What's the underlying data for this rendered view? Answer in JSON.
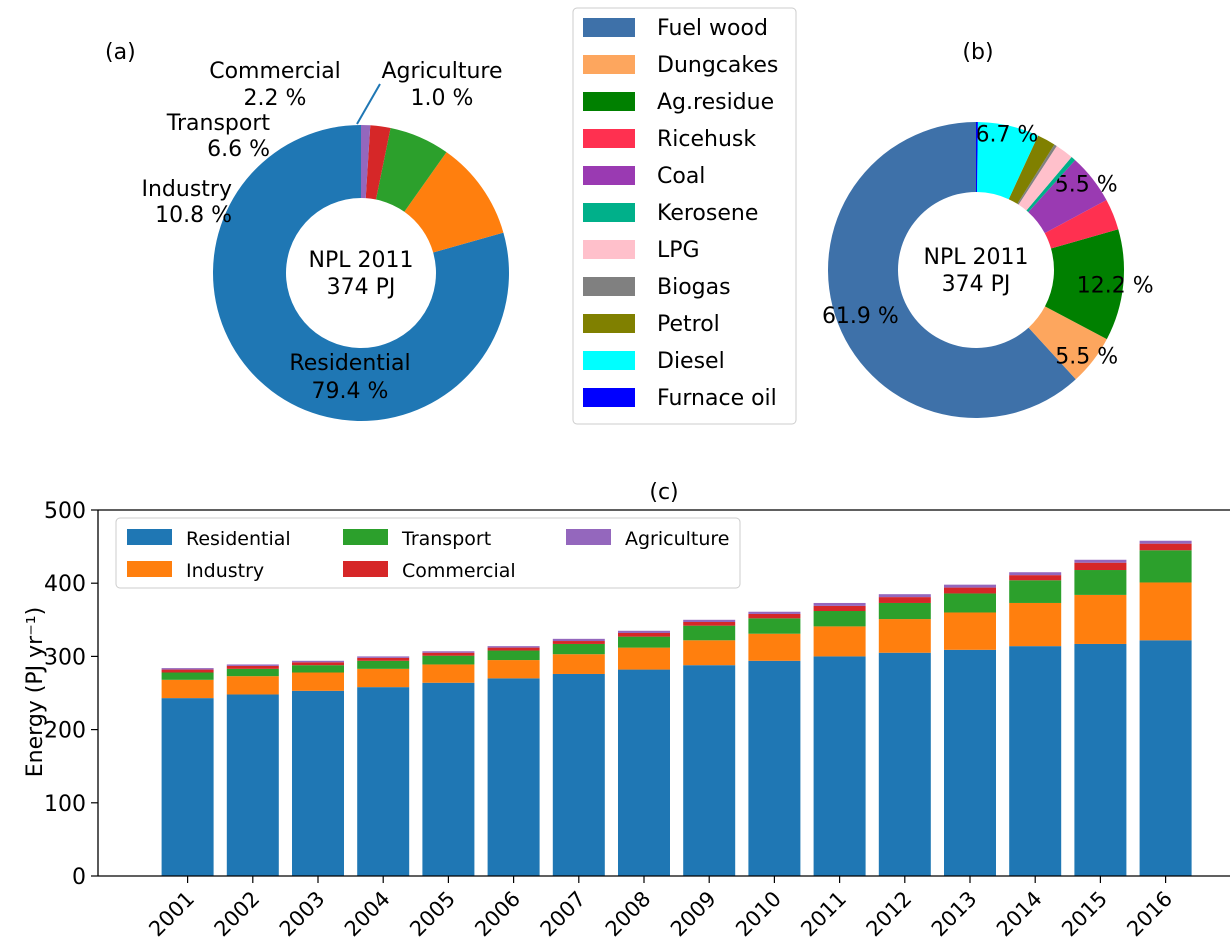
{
  "chart_data": [
    {
      "type": "pie",
      "panel_label": "(a)",
      "center_label": [
        "NPL 2011",
        "374 PJ"
      ],
      "labels": [
        "Residential",
        "Industry",
        "Transport",
        "Commercial",
        "Agriculture"
      ],
      "values": [
        79.4,
        10.8,
        6.6,
        2.2,
        1.0
      ],
      "value_labels": [
        "79.4 %",
        "10.8 %",
        "6.6 %",
        "2.2 %",
        "1.0 %"
      ],
      "colors": [
        "#1f77b4",
        "#ff7f0e",
        "#2ca02c",
        "#d62728",
        "#9467bd"
      ],
      "donut": true
    },
    {
      "type": "pie",
      "panel_label": "(b)",
      "center_label": [
        "NPL 2011",
        "374 PJ"
      ],
      "labels": [
        "Fuel wood",
        "Dungcakes",
        "Ag.residue",
        "Ricehusk",
        "Coal",
        "Kerosene",
        "LPG",
        "Biogas",
        "Petrol",
        "Diesel",
        "Furnace oil"
      ],
      "values": [
        61.9,
        5.5,
        12.2,
        3.4,
        5.5,
        0.5,
        2.0,
        0.3,
        2.0,
        6.7,
        0.2
      ],
      "value_labels": [
        "61.9 %",
        "5.5 %",
        "12.2 %",
        "",
        "5.5 %",
        "",
        "",
        "",
        "",
        "6.7 %",
        ""
      ],
      "colors": [
        "#3e71a9",
        "#fda65e",
        "#008000",
        "#ff3050",
        "#9a3ab2",
        "#00b08a",
        "#ffc0cb",
        "#808080",
        "#808000",
        "#00ffff",
        "#0000ff"
      ],
      "legend": "center-left of panel",
      "donut": true
    },
    {
      "type": "bar",
      "stacked": true,
      "panel_label": "(c)",
      "categories": [
        "2001",
        "2002",
        "2003",
        "2004",
        "2005",
        "2006",
        "2007",
        "2008",
        "2009",
        "2010",
        "2011",
        "2012",
        "2013",
        "2014",
        "2015",
        "2016"
      ],
      "series": [
        {
          "name": "Residential",
          "color": "#1f77b4",
          "values": [
            243,
            248,
            253,
            258,
            264,
            270,
            276,
            282,
            288,
            294,
            300,
            305,
            309,
            314,
            317,
            322
          ]
        },
        {
          "name": "Industry",
          "color": "#ff7f0e",
          "values": [
            25,
            25,
            25,
            25,
            25,
            25,
            27,
            30,
            34,
            37,
            41,
            46,
            51,
            59,
            67,
            79
          ]
        },
        {
          "name": "Transport",
          "color": "#2ca02c",
          "values": [
            10,
            10,
            10,
            11,
            12,
            13,
            14,
            15,
            20,
            21,
            21,
            22,
            26,
            31,
            34,
            44
          ]
        },
        {
          "name": "Commercial",
          "color": "#d62728",
          "values": [
            4,
            4,
            4,
            4,
            4,
            4,
            4,
            5,
            5,
            6,
            7,
            8,
            8,
            7,
            10,
            9
          ]
        },
        {
          "name": "Agriculture",
          "color": "#9467bd",
          "values": [
            2,
            2,
            2,
            2,
            2,
            2,
            3,
            3,
            3,
            3,
            4,
            4,
            4,
            4,
            4,
            4
          ]
        }
      ],
      "ylabel": "Energy (PJ yr⁻¹)",
      "yticks": [
        "0",
        "100",
        "200",
        "300",
        "400",
        "500"
      ],
      "ylim": [
        0,
        500
      ],
      "legend": "top-left",
      "grid": false
    }
  ]
}
